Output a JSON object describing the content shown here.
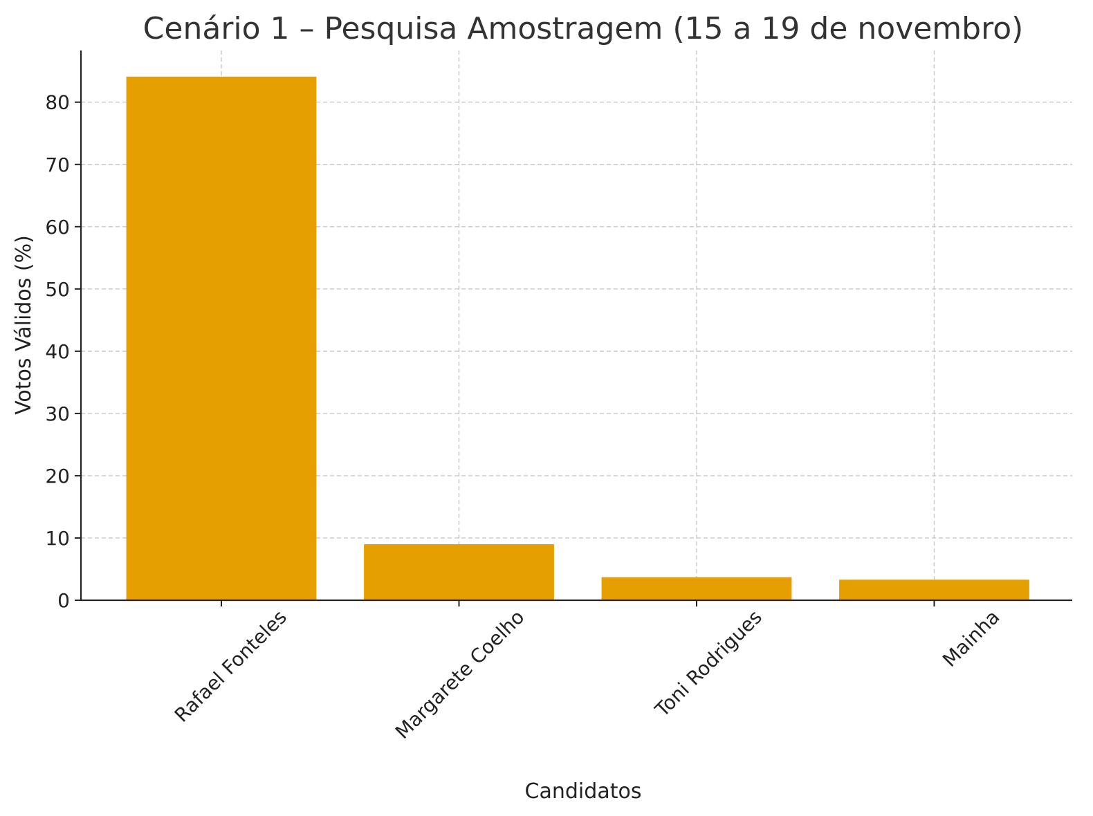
{
  "chart_data": {
    "type": "bar",
    "title": "Cenário 1 – Pesquisa Amostragem (15 a 19 de novembro)",
    "xlabel": "Candidatos",
    "ylabel": "Votos Válidos (%)",
    "categories": [
      "Rafael Fonteles",
      "Margarete Coelho",
      "Toni Rodrigues",
      "Mainha"
    ],
    "values": [
      84.1,
      9.0,
      3.7,
      3.3
    ],
    "ylim": [
      0,
      88.3
    ],
    "yticks": [
      0,
      10,
      20,
      30,
      40,
      50,
      60,
      70,
      80
    ],
    "grid": true,
    "bar_color": "#E69F00",
    "x_label_rotation": -45
  }
}
